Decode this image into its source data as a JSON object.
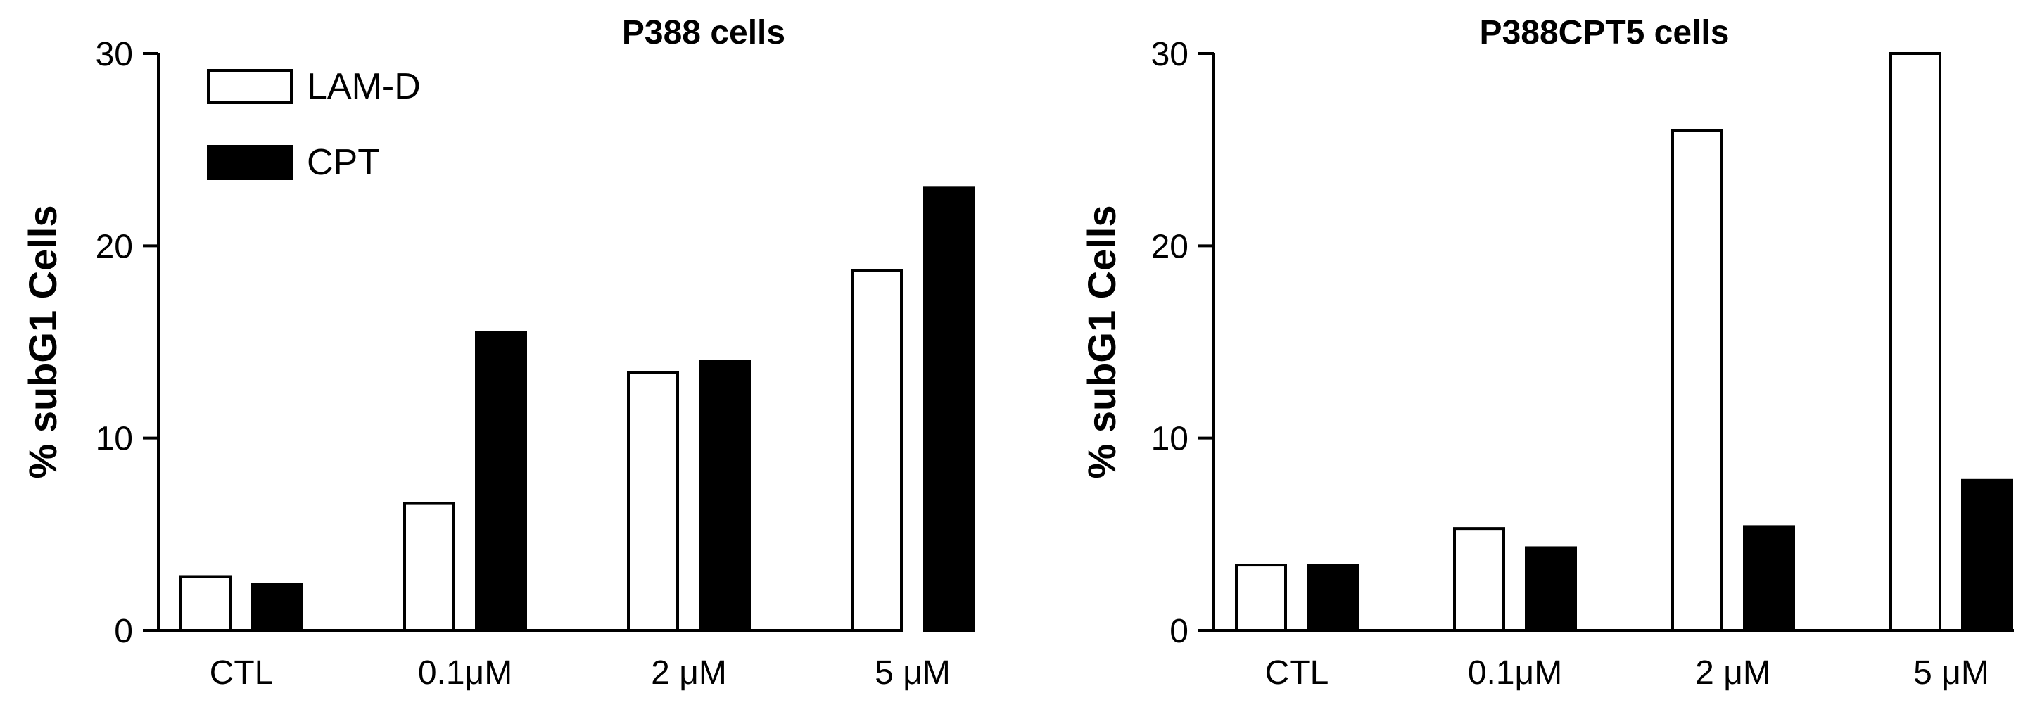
{
  "chart_data": [
    {
      "type": "bar",
      "title": "P388 cells",
      "xlabel": "",
      "ylabel": "% subG1 Cells",
      "ylim": [
        0,
        30
      ],
      "yticks": [
        0,
        10,
        20,
        30
      ],
      "categories": [
        "CTL",
        "0.1μM",
        "2 μM",
        "5 μM"
      ],
      "series": [
        {
          "name": "LAM-D",
          "values": [
            2.8,
            6.6,
            13.4,
            18.7
          ],
          "color": "#ffffff"
        },
        {
          "name": "CPT",
          "values": [
            2.4,
            15.5,
            14.0,
            23.0
          ],
          "color": "#000000"
        }
      ],
      "legend": "top-left",
      "grid": false
    },
    {
      "type": "bar",
      "title": "P388CPT5 cells",
      "xlabel": "",
      "ylabel": "% subG1 Cells",
      "ylim": [
        0,
        30
      ],
      "yticks": [
        0,
        10,
        20,
        30
      ],
      "categories": [
        "CTL",
        "0.1μM",
        "2 μM",
        "5 μM"
      ],
      "series": [
        {
          "name": "LAM-D",
          "values": [
            3.4,
            5.3,
            26.0,
            30.0
          ],
          "color": "#ffffff"
        },
        {
          "name": "CPT",
          "values": [
            3.4,
            4.3,
            5.4,
            7.8
          ],
          "color": "#000000"
        }
      ],
      "grid": false
    }
  ]
}
